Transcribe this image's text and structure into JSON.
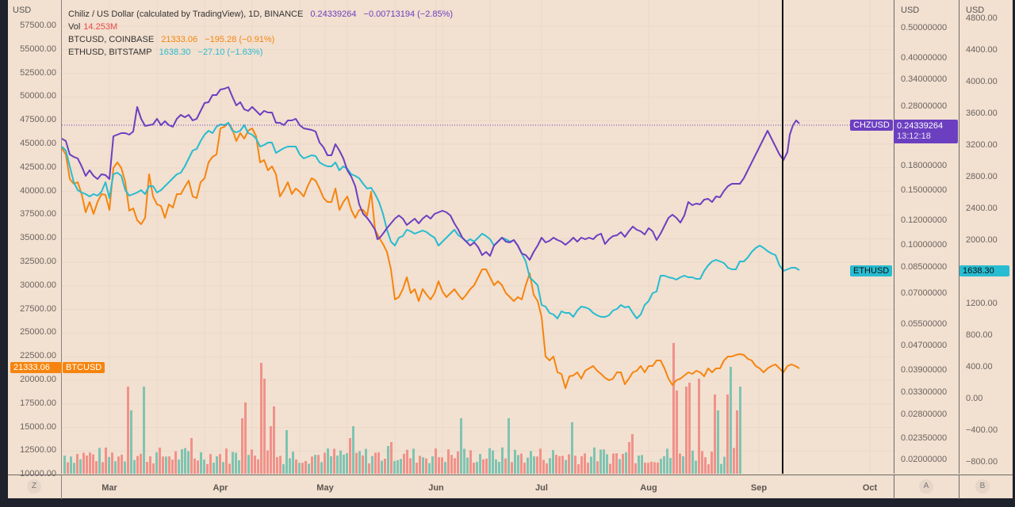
{
  "legend": {
    "main": {
      "title": "Chiliz / US Dollar (calculated by TradingView), 1D, BINANCE",
      "price": "0.24339264",
      "change": "−0.00713194 (−2.85%)",
      "color": "#6c3fc0"
    },
    "volume": {
      "label": "Vol",
      "value": "14.253M",
      "color": "#e84a4a"
    },
    "btc": {
      "title": "BTCUSD, COINBASE",
      "price": "21333.06",
      "change": "−195.28 (−0.91%)",
      "color": "#f5850f"
    },
    "eth": {
      "title": "ETHUSD, BITSTAMP",
      "price": "1638.30",
      "change": "−27.10 (−1.63%)",
      "color": "#27bcd1"
    }
  },
  "axes": {
    "left": {
      "title": "USD",
      "ticks": [
        "57500.00",
        "55000.00",
        "52500.00",
        "50000.00",
        "47500.00",
        "45000.00",
        "42500.00",
        "40000.00",
        "37500.00",
        "35000.00",
        "32500.00",
        "30000.00",
        "27500.00",
        "25000.00",
        "22500.00",
        "20000.00",
        "17500.00",
        "15000.00",
        "12500.00",
        "10000.00"
      ]
    },
    "a": {
      "title": "USD",
      "ticks": [
        "0.50000000",
        "0.40000000",
        "0.34000000",
        "0.28000000",
        "0.22000000",
        "0.18000000",
        "0.15000000",
        "0.12000000",
        "0.10000000",
        "0.08500000",
        "0.07000000",
        "0.05500000",
        "0.04700000",
        "0.03900000",
        "0.03300000",
        "0.02800000",
        "0.02350000",
        "0.02000000"
      ],
      "button": "A"
    },
    "b": {
      "title": "USD",
      "ticks": [
        "4800.00",
        "4400.00",
        "4000.00",
        "3600.00",
        "3200.00",
        "2800.00",
        "2400.00",
        "2000.00",
        "1600.00",
        "1200.00",
        "800.00",
        "400.00",
        "0.00",
        "−400.00",
        "−800.00"
      ],
      "button": "B"
    },
    "time": {
      "months": [
        "Mar",
        "Apr",
        "May",
        "Jun",
        "Jul",
        "Aug",
        "Sep",
        "Oct"
      ],
      "button": "Z"
    }
  },
  "tags": {
    "chz": {
      "label": "CHZUSD",
      "price": "0.24339264",
      "countdown": "13:12:18",
      "color": "#6c3fc0"
    },
    "eth": {
      "label": "ETHUSD",
      "price": "1638.30",
      "color": "#27bcd1"
    },
    "btc": {
      "label": "BTCUSD",
      "price": "21333.06",
      "color": "#f5850f"
    }
  },
  "colors": {
    "up_volume": "#7fc4b2",
    "down_volume": "#f0928a",
    "grid": "#ead8c9",
    "background": "#f2e0d0"
  },
  "chart_data": {
    "type": "line",
    "title": "Chiliz / US Dollar (calculated by TradingView), 1D, BINANCE",
    "x_labels": [
      "Mar",
      "Apr",
      "May",
      "Jun",
      "Jul",
      "Aug",
      "Sep",
      "Oct"
    ],
    "series": [
      {
        "name": "CHZUSD",
        "axis": "A",
        "color": "#6c3fc0",
        "values_approx": [
          0.215,
          0.19,
          0.17,
          0.165,
          0.19,
          0.2,
          0.2,
          0.23,
          0.28,
          0.3,
          0.27,
          0.25,
          0.23,
          0.22,
          0.21,
          0.19,
          0.17,
          0.13,
          0.1,
          0.11,
          0.115,
          0.115,
          0.12,
          0.115,
          0.095,
          0.09,
          0.095,
          0.1,
          0.095,
          0.1,
          0.105,
          0.11,
          0.13,
          0.15,
          0.16,
          0.2,
          0.23,
          0.21,
          0.25,
          0.2434
        ]
      },
      {
        "name": "BTCUSD",
        "axis": "Left",
        "color": "#f5850f",
        "values_approx": [
          44000,
          38500,
          37000,
          39000,
          44000,
          39000,
          38000,
          42000,
          46500,
          47000,
          46000,
          42000,
          39500,
          39000,
          38000,
          37500,
          36000,
          30000,
          29500,
          29200,
          29500,
          30000,
          29700,
          22000,
          20500,
          21000,
          20000,
          19800,
          20500,
          21000,
          23500,
          23500,
          22800,
          23800,
          24200,
          23500,
          24000,
          21000,
          21300,
          21333
        ]
      },
      {
        "name": "ETHUSD",
        "axis": "B",
        "color": "#27bcd1",
        "values_approx": [
          2950,
          2600,
          2550,
          2800,
          2950,
          2700,
          2600,
          2950,
          3350,
          3450,
          3200,
          3100,
          3000,
          2950,
          2900,
          2800,
          2600,
          2100,
          1900,
          1950,
          2050,
          1950,
          1950,
          1750,
          1100,
          1150,
          1050,
          1100,
          1100,
          1050,
          1300,
          1550,
          1680,
          1680,
          1700,
          1850,
          1900,
          1700,
          1600,
          1638
        ]
      },
      {
        "name": "Volume",
        "type": "bar",
        "unit": "M",
        "latest": "14.253M"
      }
    ],
    "ylim_left": [
      10000,
      58000
    ],
    "ylim_a": [
      0.019,
      0.55
    ],
    "ylim_b": [
      -900,
      4800
    ],
    "grid": true,
    "legend_position": "top-left"
  }
}
